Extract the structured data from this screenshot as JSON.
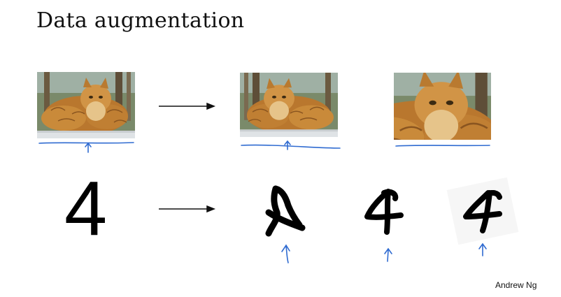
{
  "slide": {
    "title": "Data augmentation",
    "footer": "Andrew Ng"
  },
  "digits": {
    "original": "4"
  },
  "colors": {
    "ink": "#2f6bd1",
    "arrow": "#111111",
    "cat_fur": "#c98a3a"
  }
}
